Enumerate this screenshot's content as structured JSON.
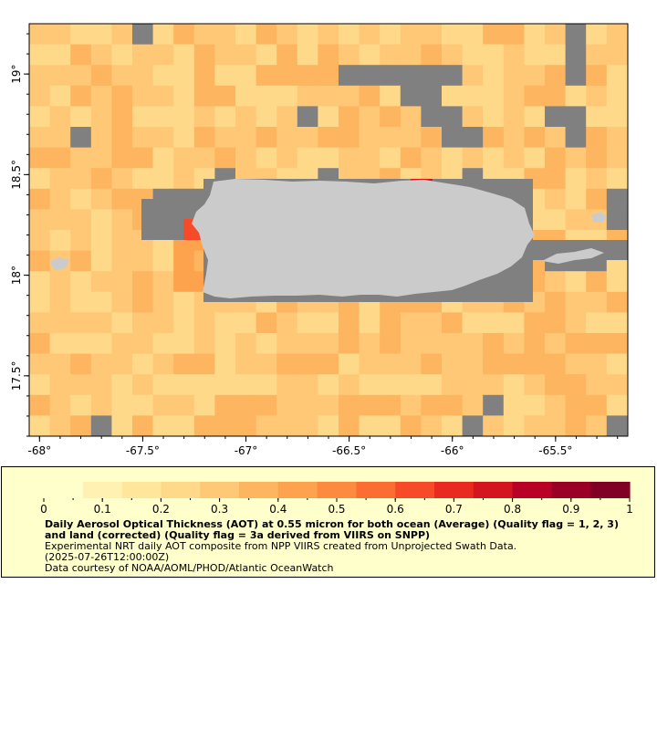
{
  "map": {
    "lon_range": [
      -68.05,
      -65.15
    ],
    "lat_range": [
      17.2,
      19.25
    ],
    "x_ticks": [
      {
        "value": -68,
        "label": "-68°"
      },
      {
        "value": -67.5,
        "label": "-67.5°"
      },
      {
        "value": -67,
        "label": "-67°"
      },
      {
        "value": -66.5,
        "label": "-66.5°"
      },
      {
        "value": -66,
        "label": "-66°"
      },
      {
        "value": -65.5,
        "label": "-65.5°"
      }
    ],
    "y_ticks": [
      {
        "value": 19,
        "label": "19°"
      },
      {
        "value": 18.5,
        "label": "18.5°"
      },
      {
        "value": 18,
        "label": "18°"
      },
      {
        "value": 17.5,
        "label": "17.5°"
      }
    ],
    "colors": {
      "land": "#cbcbcb",
      "no_data": "#808080",
      "frame": "#000000"
    },
    "base_aot": 0.3
  },
  "colorbar": {
    "min": 0,
    "max": 1,
    "ticks": [
      "0",
      "0.1",
      "0.2",
      "0.3",
      "0.4",
      "0.5",
      "0.6",
      "0.7",
      "0.8",
      "0.9",
      "1"
    ],
    "colors": [
      "#ffffcc",
      "#fff2b0",
      "#ffe69a",
      "#fed98a",
      "#fec877",
      "#feb55f",
      "#fda24d",
      "#fd8b3f",
      "#fc6d33",
      "#f64a29",
      "#e82a21",
      "#d3151f",
      "#b90026",
      "#9a0026",
      "#800026"
    ]
  },
  "legend": {
    "title": "Daily Aerosol Optical Thickness (AOT) at 0.55 micron for both ocean (Average) (Quality flag = 1, 2, 3) and land (corrected) (Quality flag = 3a derived from VIIRS on SNPP)",
    "line1": "Experimental NRT daily AOT composite from NPP VIIRS created from Unprojected Swath Data.",
    "line2": "(2025-07-26T12:00:00Z)",
    "line3": "Data courtesy of NOAA/AOML/PHOD/Atlantic OceanWatch"
  }
}
